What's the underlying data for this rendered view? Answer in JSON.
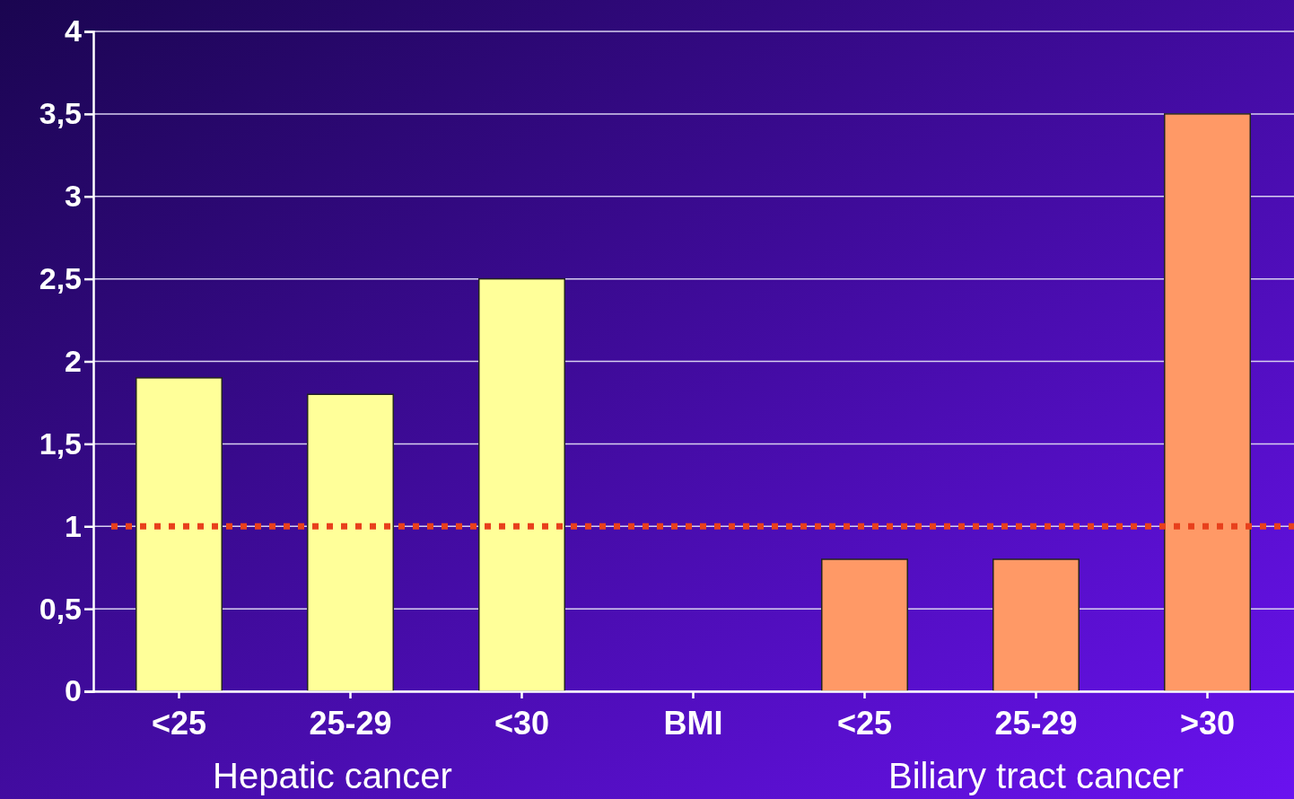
{
  "chart_data": {
    "type": "bar",
    "categories": [
      "<25",
      "25-29",
      "<30",
      "BMI",
      "<25",
      "25-29",
      ">30"
    ],
    "values": [
      1.9,
      1.8,
      2.5,
      null,
      0.8,
      0.8,
      3.5
    ],
    "colors": [
      "#ffff99",
      "#ffff99",
      "#ffff99",
      null,
      "#ff9966",
      "#ff9966",
      "#ff9966"
    ],
    "ylim": [
      0,
      4
    ],
    "yticks": [
      0,
      {
        "value": 0.5,
        "label": "0,5"
      },
      1,
      {
        "value": 1.5,
        "label": "1,5"
      },
      2,
      {
        "value": 2.5,
        "label": "2,5"
      },
      3,
      {
        "value": 3.5,
        "label": "3,5"
      },
      4
    ],
    "grid": "y",
    "ref_lines": [
      {
        "axis": "y",
        "value": 1,
        "color": "#e8401c",
        "line_style": "dotted"
      }
    ],
    "annotations": [
      "Hepatic cancer",
      "Biliary tract cancer"
    ]
  }
}
